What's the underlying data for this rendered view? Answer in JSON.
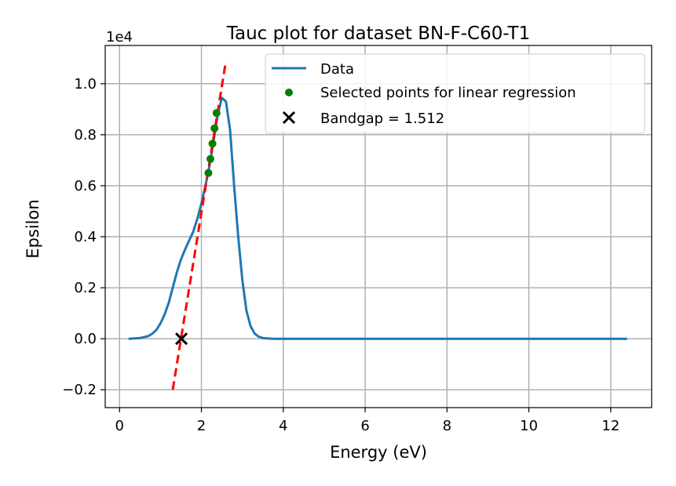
{
  "chart_data": {
    "type": "line",
    "title": "Tauc plot for dataset BN-F-C60-T1",
    "xlabel": "Energy (eV)",
    "ylabel": "Epsilon",
    "y_offset_label": "1e4",
    "xlim": [
      -0.35,
      13.0
    ],
    "ylim": [
      -0.27,
      1.15
    ],
    "y_scale_factor": 10000,
    "grid": true,
    "legend_position": "top-right",
    "x_ticks": [
      0,
      2,
      4,
      6,
      8,
      10,
      12
    ],
    "x_tick_labels": [
      "0",
      "2",
      "4",
      "6",
      "8",
      "10",
      "12"
    ],
    "y_ticks": [
      -0.2,
      0.0,
      0.2,
      0.4,
      0.6,
      0.8,
      1.0
    ],
    "y_tick_labels": [
      "−0.2",
      "0.0",
      "0.2",
      "0.4",
      "0.6",
      "0.8",
      "1.0"
    ],
    "series": [
      {
        "name": "Data",
        "kind": "line",
        "color": "#1f77b4",
        "x": [
          0.22,
          0.5,
          0.7,
          0.8,
          0.9,
          1.0,
          1.1,
          1.2,
          1.3,
          1.4,
          1.5,
          1.6,
          1.7,
          1.8,
          1.9,
          2.0,
          2.1,
          2.2,
          2.3,
          2.4,
          2.5,
          2.6,
          2.7,
          2.8,
          2.9,
          3.0,
          3.1,
          3.2,
          3.3,
          3.4,
          3.5,
          3.6,
          3.8,
          4.0,
          6.0,
          8.0,
          10.0,
          12.4
        ],
        "y": [
          0.0,
          0.003,
          0.01,
          0.02,
          0.035,
          0.06,
          0.095,
          0.14,
          0.2,
          0.26,
          0.31,
          0.35,
          0.385,
          0.42,
          0.47,
          0.53,
          0.6,
          0.68,
          0.78,
          0.88,
          0.945,
          0.93,
          0.82,
          0.6,
          0.4,
          0.23,
          0.11,
          0.05,
          0.02,
          0.008,
          0.003,
          0.001,
          0.0,
          0.0,
          0.0,
          0.0,
          0.0,
          0.0
        ]
      },
      {
        "name": "Selected points for linear regression",
        "kind": "scatter",
        "color": "#008000",
        "x": [
          2.17,
          2.22,
          2.27,
          2.32,
          2.37
        ],
        "y": [
          0.65,
          0.705,
          0.765,
          0.825,
          0.885
        ]
      },
      {
        "name": "Bandgap = 1.512",
        "kind": "marker-x",
        "color": "#000000",
        "x": [
          1.512
        ],
        "y": [
          0.0
        ]
      },
      {
        "name": "",
        "kind": "dashed-line",
        "color": "#ff0000",
        "x": [
          1.3,
          2.6
        ],
        "y": [
          -0.2,
          1.09
        ]
      }
    ]
  }
}
